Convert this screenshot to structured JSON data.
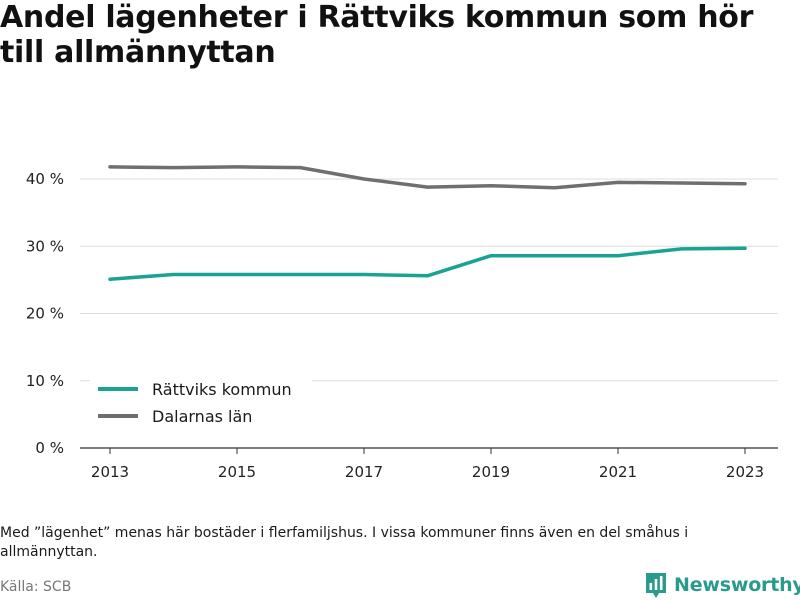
{
  "title": "Andel lägenheter i Rättviks kommun som hör till allmännyttan",
  "note": "Med ”lägenhet” menas här bostäder i flerfamiljshus. I vissa kommuner finns även en del småhus i allmännyttan.",
  "source": "Källa: SCB",
  "brand": {
    "name": "Newsworthy",
    "icon": "bar-chart-logo-icon"
  },
  "chart_data": {
    "type": "line",
    "title": "Andel lägenheter i Rättviks kommun som hör till allmännyttan",
    "xlabel": "",
    "ylabel": "",
    "x": [
      2013,
      2014,
      2015,
      2016,
      2017,
      2018,
      2019,
      2020,
      2021,
      2022,
      2023
    ],
    "xticks": [
      "2013",
      "2015",
      "2017",
      "2019",
      "2021",
      "2023"
    ],
    "xlim": [
      2013,
      2023
    ],
    "ylim": [
      0,
      40
    ],
    "yticks": [
      0,
      10,
      20,
      30,
      40
    ],
    "ytick_labels": [
      "0 %",
      "10 %",
      "20 %",
      "30 %",
      "40 %"
    ],
    "grid": "horizontal",
    "legend_position": "bottom-left",
    "series": [
      {
        "name": "Rättviks kommun",
        "color": "#1aa394",
        "values": [
          25.1,
          25.8,
          25.8,
          25.8,
          25.8,
          25.6,
          28.6,
          28.6,
          28.6,
          29.6,
          29.7
        ]
      },
      {
        "name": "Dalarnas län",
        "color": "#6f6e72",
        "values": [
          41.8,
          41.7,
          41.8,
          41.7,
          40.0,
          38.8,
          39.0,
          38.7,
          39.5,
          39.4,
          39.3
        ]
      }
    ]
  }
}
